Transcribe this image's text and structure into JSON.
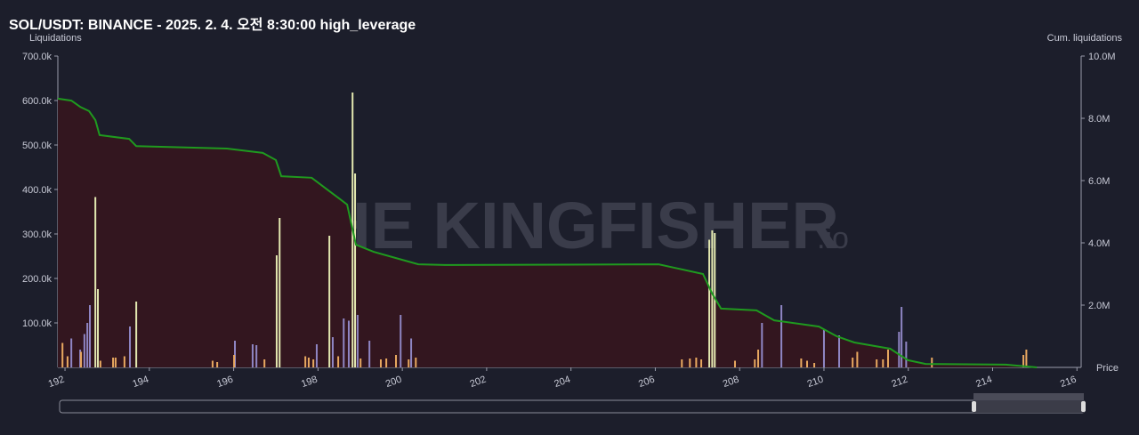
{
  "chart_data": {
    "type": "bar",
    "title": "SOL/USDT: BINANCE - 2025. 2. 4. 오전 8:30:00 high_leverage",
    "y_axis_label": "Liquidations",
    "y2_axis_label": "Cum. liquidations",
    "x_axis_label": "Price",
    "watermark": {
      "main": "THE KINGFISHER",
      "suffix": ".io"
    },
    "xlim": [
      191.83,
      216.1
    ],
    "xticks": [
      192,
      194,
      196,
      198,
      200,
      202,
      204,
      206,
      208,
      210,
      212,
      214,
      216
    ],
    "ylim": [
      0,
      700000
    ],
    "yticks": [
      {
        "value": 100000,
        "label": "100.0k"
      },
      {
        "value": 200000,
        "label": "200.0k"
      },
      {
        "value": 300000,
        "label": "300.0k"
      },
      {
        "value": 400000,
        "label": "400.0k"
      },
      {
        "value": 500000,
        "label": "500.0k"
      },
      {
        "value": 600000,
        "label": "600.0k"
      },
      {
        "value": 700000,
        "label": "700.0k"
      }
    ],
    "y2lim": [
      0,
      10000000
    ],
    "y2ticks": [
      {
        "value": 2000000,
        "label": "2.0M"
      },
      {
        "value": 4000000,
        "label": "4.0M"
      },
      {
        "value": 6000000,
        "label": "6.0M"
      },
      {
        "value": 8000000,
        "label": "8.0M"
      },
      {
        "value": 10000000,
        "label": "10.0M"
      }
    ],
    "series": [
      {
        "color": "#e3e8b0",
        "x": [
          192.72,
          192.78,
          193.69,
          197.02,
          197.09,
          198.27,
          198.82,
          198.88,
          207.28,
          207.35,
          207.41
        ],
        "values": [
          383000,
          176000,
          148000,
          252000,
          336000,
          296000,
          618000,
          436000,
          287000,
          308000,
          302000
        ]
      },
      {
        "color": "#8f86c4",
        "x": [
          192.15,
          192.36,
          192.46,
          192.53,
          192.59,
          193.54,
          196.03,
          196.45,
          196.54,
          197.97,
          198.35,
          198.61,
          198.73,
          198.94,
          199.22,
          199.96,
          200.21,
          208.53,
          208.99,
          210.0,
          210.36,
          211.78,
          211.84,
          211.95
        ],
        "values": [
          65000,
          40000,
          75000,
          100000,
          140000,
          92000,
          60000,
          52000,
          50000,
          52000,
          68000,
          110000,
          105000,
          118000,
          60000,
          118000,
          65000,
          100000,
          140000,
          85000,
          72000,
          80000,
          136000,
          58000
        ]
      },
      {
        "color": "#e8a860",
        "x": [
          191.94,
          192.06,
          192.38,
          192.84,
          193.14,
          193.2,
          193.41,
          195.5,
          195.61,
          196.01,
          196.73,
          197.7,
          197.78,
          197.89,
          198.48,
          199.01,
          199.49,
          199.62,
          199.85,
          200.15,
          200.32,
          206.63,
          206.82,
          206.97,
          207.09,
          207.89,
          208.36,
          208.44,
          209.46,
          209.6,
          209.77,
          210.68,
          210.79,
          211.25,
          211.4,
          211.52,
          212.56,
          214.73,
          214.8
        ],
        "values": [
          55000,
          25000,
          35000,
          15000,
          22000,
          22000,
          25000,
          15000,
          12000,
          28000,
          18000,
          25000,
          22000,
          18000,
          25000,
          20000,
          18000,
          20000,
          28000,
          18000,
          22000,
          18000,
          20000,
          22000,
          18000,
          15000,
          18000,
          40000,
          20000,
          15000,
          10000,
          22000,
          35000,
          18000,
          18000,
          40000,
          22000,
          28000,
          40000
        ]
      },
      {
        "type": "line",
        "axis": "y2",
        "color": "#1f9a1f",
        "fill": "#33161f",
        "x": [
          191.83,
          192.15,
          192.36,
          192.57,
          192.72,
          192.82,
          193.52,
          193.69,
          195.84,
          196.69,
          197.0,
          197.13,
          197.85,
          198.27,
          198.69,
          198.9,
          199.32,
          199.85,
          200.38,
          201.01,
          206.08,
          207.13,
          207.35,
          207.56,
          208.4,
          208.82,
          209.88,
          210.3,
          210.72,
          211.57,
          211.99,
          212.41,
          214.31,
          215.05
        ],
        "values": [
          8630000,
          8570000,
          8370000,
          8230000,
          7940000,
          7460000,
          7340000,
          7110000,
          7030000,
          6890000,
          6660000,
          6140000,
          6090000,
          5660000,
          5230000,
          3940000,
          3710000,
          3510000,
          3310000,
          3290000,
          3310000,
          3000000,
          2370000,
          1890000,
          1830000,
          1510000,
          1310000,
          1000000,
          800000,
          600000,
          230000,
          110000,
          90000,
          0
        ]
      }
    ]
  }
}
